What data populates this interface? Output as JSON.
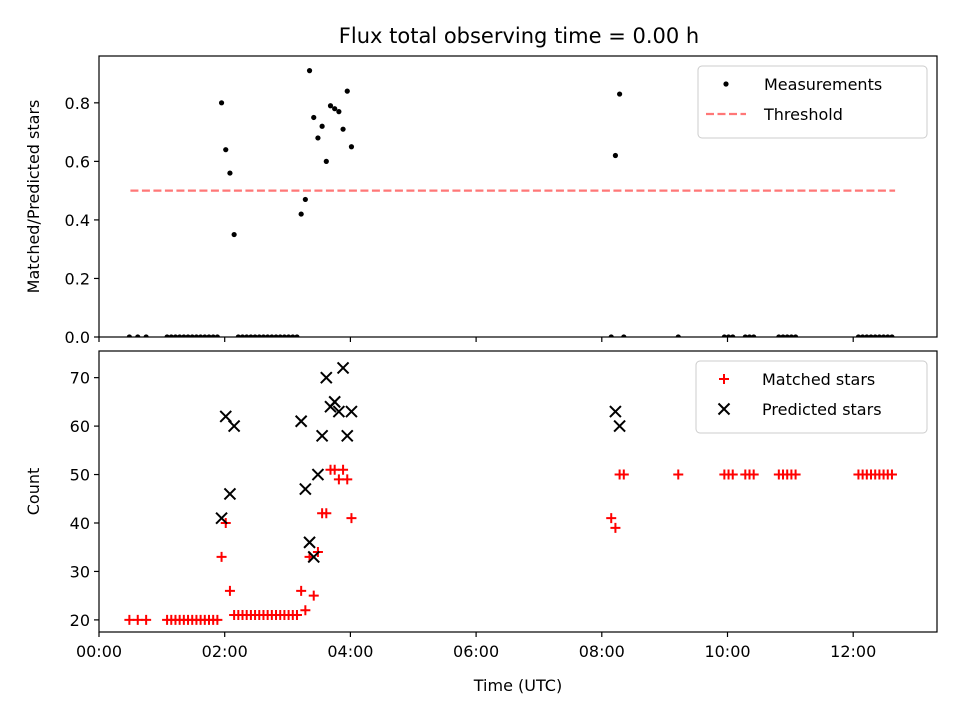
{
  "title": "Flux total observing time = 0.00 h",
  "chart_data": [
    {
      "type": "scatter",
      "ylabel": "Matched/Predicted stars",
      "ylim": [
        0,
        0.96
      ],
      "yticks": [
        0.0,
        0.2,
        0.4,
        0.6,
        0.8
      ],
      "ytick_labels": [
        "0.0",
        "0.2",
        "0.4",
        "0.6",
        "0.8"
      ],
      "xlim": [
        "00:00",
        "13:20"
      ],
      "legend_position": "top-right",
      "threshold": {
        "name": "Threshold",
        "value": 0.5,
        "x_start": "00:30",
        "x_end": "12:40",
        "color": "#ff7777"
      },
      "series": [
        {
          "name": "Measurements",
          "color": "#000000",
          "points": [
            [
              "00:29",
              0
            ],
            [
              "00:37",
              0
            ],
            [
              "00:45",
              0
            ],
            [
              "01:05",
              0
            ],
            [
              "01:09",
              0
            ],
            [
              "01:13",
              0
            ],
            [
              "01:17",
              0
            ],
            [
              "01:21",
              0
            ],
            [
              "01:25",
              0
            ],
            [
              "01:29",
              0
            ],
            [
              "01:33",
              0
            ],
            [
              "01:37",
              0
            ],
            [
              "01:41",
              0
            ],
            [
              "01:45",
              0
            ],
            [
              "01:49",
              0
            ],
            [
              "01:53",
              0
            ],
            [
              "01:57",
              0.8
            ],
            [
              "02:01",
              0.64
            ],
            [
              "02:05",
              0.56
            ],
            [
              "02:09",
              0.35
            ],
            [
              "02:13",
              0
            ],
            [
              "02:17",
              0
            ],
            [
              "02:21",
              0
            ],
            [
              "02:25",
              0
            ],
            [
              "02:29",
              0
            ],
            [
              "02:33",
              0
            ],
            [
              "02:37",
              0
            ],
            [
              "02:41",
              0
            ],
            [
              "02:45",
              0
            ],
            [
              "02:49",
              0
            ],
            [
              "02:53",
              0
            ],
            [
              "02:57",
              0
            ],
            [
              "03:01",
              0
            ],
            [
              "03:05",
              0
            ],
            [
              "03:09",
              0
            ],
            [
              "03:13",
              0.42
            ],
            [
              "03:17",
              0.47
            ],
            [
              "03:21",
              0.91
            ],
            [
              "03:25",
              0.75
            ],
            [
              "03:29",
              0.68
            ],
            [
              "03:33",
              0.72
            ],
            [
              "03:37",
              0.6
            ],
            [
              "03:41",
              0.79
            ],
            [
              "03:45",
              0.78
            ],
            [
              "03:49",
              0.77
            ],
            [
              "03:53",
              0.71
            ],
            [
              "03:57",
              0.84
            ],
            [
              "04:01",
              0.65
            ],
            [
              "08:09",
              0
            ],
            [
              "08:13",
              0.62
            ],
            [
              "08:17",
              0.83
            ],
            [
              "08:21",
              0
            ],
            [
              "09:13",
              0
            ],
            [
              "09:57",
              0
            ],
            [
              "10:01",
              0
            ],
            [
              "10:05",
              0
            ],
            [
              "10:17",
              0
            ],
            [
              "10:21",
              0
            ],
            [
              "10:25",
              0
            ],
            [
              "10:49",
              0
            ],
            [
              "10:53",
              0
            ],
            [
              "10:57",
              0
            ],
            [
              "11:01",
              0
            ],
            [
              "11:05",
              0
            ],
            [
              "12:05",
              0
            ],
            [
              "12:09",
              0
            ],
            [
              "12:13",
              0
            ],
            [
              "12:17",
              0
            ],
            [
              "12:21",
              0
            ],
            [
              "12:25",
              0
            ],
            [
              "12:29",
              0
            ],
            [
              "12:33",
              0
            ],
            [
              "12:37",
              0
            ]
          ]
        }
      ]
    },
    {
      "type": "scatter",
      "ylabel": "Count",
      "xlabel": "Time (UTC)",
      "ylim": [
        17.5,
        75.5
      ],
      "yticks": [
        20,
        30,
        40,
        50,
        60,
        70
      ],
      "ytick_labels": [
        "20",
        "30",
        "40",
        "50",
        "60",
        "70"
      ],
      "xlim": [
        "00:00",
        "13:20"
      ],
      "xticks": [
        "00:00",
        "02:00",
        "04:00",
        "06:00",
        "08:00",
        "10:00",
        "12:00"
      ],
      "xtick_labels": [
        "00:00",
        "02:00",
        "04:00",
        "06:00",
        "08:00",
        "10:00",
        "12:00"
      ],
      "legend_position": "top-right",
      "series": [
        {
          "name": "Matched stars",
          "marker": "plus",
          "color": "#ff0000",
          "points": [
            [
              "00:29",
              20
            ],
            [
              "00:37",
              20
            ],
            [
              "00:45",
              20
            ],
            [
              "01:05",
              20
            ],
            [
              "01:09",
              20
            ],
            [
              "01:13",
              20
            ],
            [
              "01:17",
              20
            ],
            [
              "01:21",
              20
            ],
            [
              "01:25",
              20
            ],
            [
              "01:29",
              20
            ],
            [
              "01:33",
              20
            ],
            [
              "01:37",
              20
            ],
            [
              "01:41",
              20
            ],
            [
              "01:45",
              20
            ],
            [
              "01:49",
              20
            ],
            [
              "01:53",
              20
            ],
            [
              "01:57",
              33
            ],
            [
              "02:01",
              40
            ],
            [
              "02:05",
              26
            ],
            [
              "02:09",
              21
            ],
            [
              "02:13",
              21
            ],
            [
              "02:17",
              21
            ],
            [
              "02:21",
              21
            ],
            [
              "02:25",
              21
            ],
            [
              "02:29",
              21
            ],
            [
              "02:33",
              21
            ],
            [
              "02:37",
              21
            ],
            [
              "02:41",
              21
            ],
            [
              "02:45",
              21
            ],
            [
              "02:49",
              21
            ],
            [
              "02:53",
              21
            ],
            [
              "02:57",
              21
            ],
            [
              "03:01",
              21
            ],
            [
              "03:05",
              21
            ],
            [
              "03:09",
              21
            ],
            [
              "03:13",
              26
            ],
            [
              "03:17",
              22
            ],
            [
              "03:21",
              33
            ],
            [
              "03:25",
              25
            ],
            [
              "03:29",
              34
            ],
            [
              "03:33",
              42
            ],
            [
              "03:37",
              42
            ],
            [
              "03:41",
              51
            ],
            [
              "03:45",
              51
            ],
            [
              "03:49",
              49
            ],
            [
              "03:53",
              51
            ],
            [
              "03:57",
              49
            ],
            [
              "04:01",
              41
            ],
            [
              "08:09",
              41
            ],
            [
              "08:13",
              39
            ],
            [
              "08:17",
              50
            ],
            [
              "08:21",
              50
            ],
            [
              "09:13",
              50
            ],
            [
              "09:57",
              50
            ],
            [
              "10:01",
              50
            ],
            [
              "10:05",
              50
            ],
            [
              "10:17",
              50
            ],
            [
              "10:21",
              50
            ],
            [
              "10:25",
              50
            ],
            [
              "10:49",
              50
            ],
            [
              "10:53",
              50
            ],
            [
              "10:57",
              50
            ],
            [
              "11:01",
              50
            ],
            [
              "11:05",
              50
            ],
            [
              "12:05",
              50
            ],
            [
              "12:09",
              50
            ],
            [
              "12:13",
              50
            ],
            [
              "12:17",
              50
            ],
            [
              "12:21",
              50
            ],
            [
              "12:25",
              50
            ],
            [
              "12:29",
              50
            ],
            [
              "12:33",
              50
            ],
            [
              "12:37",
              50
            ]
          ]
        },
        {
          "name": "Predicted stars",
          "marker": "x",
          "color": "#000000",
          "points": [
            [
              "01:57",
              41
            ],
            [
              "02:01",
              62
            ],
            [
              "02:05",
              46
            ],
            [
              "02:09",
              60
            ],
            [
              "03:13",
              61
            ],
            [
              "03:17",
              47
            ],
            [
              "03:21",
              36
            ],
            [
              "03:25",
              33
            ],
            [
              "03:29",
              50
            ],
            [
              "03:33",
              58
            ],
            [
              "03:37",
              70
            ],
            [
              "03:41",
              64
            ],
            [
              "03:45",
              65
            ],
            [
              "03:49",
              63
            ],
            [
              "03:53",
              72
            ],
            [
              "03:57",
              58
            ],
            [
              "04:01",
              63
            ],
            [
              "08:13",
              63
            ],
            [
              "08:17",
              60
            ]
          ]
        }
      ]
    }
  ]
}
